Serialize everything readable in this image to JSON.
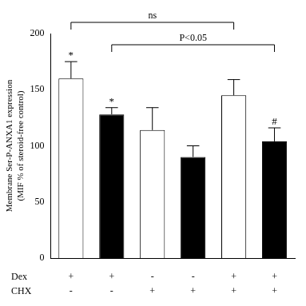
{
  "chart_data": {
    "type": "bar",
    "y_label": [
      "Membrane Ser-P-ANXA1 expression",
      "(MIF % of steroid-free control)"
    ],
    "category_rows": [
      "Dex",
      "CHX"
    ],
    "categories": [
      [
        "+",
        "-"
      ],
      [
        "+",
        "-"
      ],
      [
        "-",
        "+"
      ],
      [
        "-",
        "+"
      ],
      [
        "+",
        "+"
      ],
      [
        "+",
        "+"
      ]
    ],
    "values": [
      160,
      128,
      114,
      90,
      145,
      104
    ],
    "errors": [
      15,
      6,
      20,
      10,
      14,
      12
    ],
    "colors": [
      "#ffffff",
      "#000000",
      "#ffffff",
      "#000000",
      "#ffffff",
      "#000000"
    ],
    "ylim": [
      0,
      200
    ],
    "yticks": [
      0,
      50,
      100,
      150,
      200
    ],
    "grid": false,
    "markers": [
      {
        "index": 0,
        "text": "*"
      },
      {
        "index": 1,
        "text": "*"
      },
      {
        "index": 5,
        "text": "#"
      }
    ],
    "brackets": [
      {
        "from": 0,
        "to": 4,
        "text": "ns"
      },
      {
        "from": 1,
        "to": 5,
        "text": "P<0.05"
      }
    ]
  }
}
